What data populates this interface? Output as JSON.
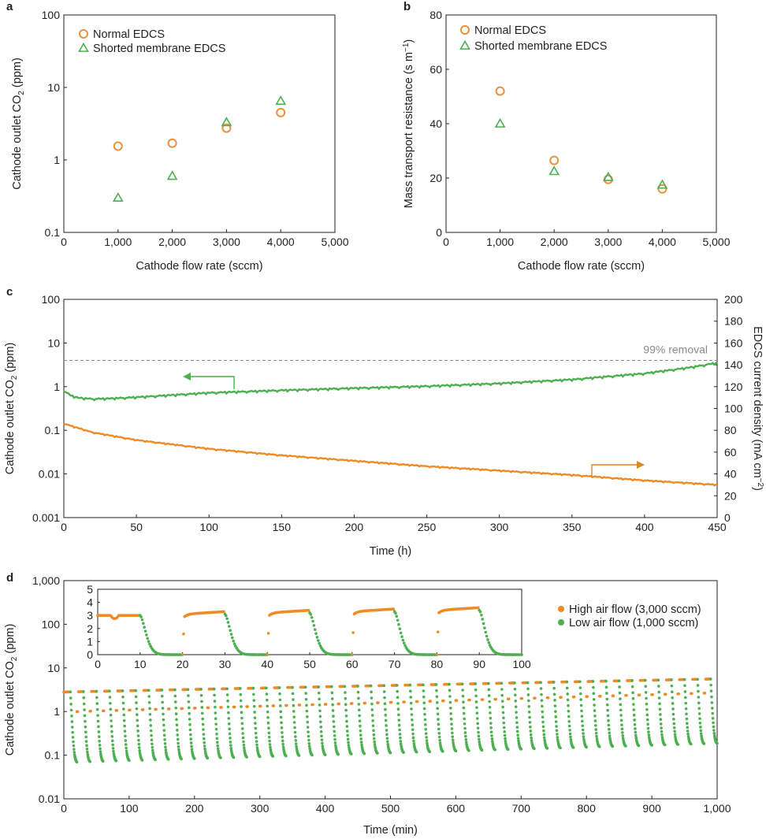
{
  "chart_data": [
    {
      "panel_label": "a",
      "type": "scatter",
      "xlabel": "Cathode flow rate (sccm)",
      "ylabel": "Cathode outlet CO2 (ppm)",
      "xlim": [
        0,
        5000
      ],
      "ylim": [
        0.1,
        100
      ],
      "y_scale": "log",
      "x_tick_labels": [
        "0",
        "1,000",
        "2,000",
        "3,000",
        "4,000",
        "5,000"
      ],
      "y_tick_labels": [
        "0.1",
        "1",
        "10",
        "100"
      ],
      "grid": false,
      "legend_position": "top-left",
      "series": [
        {
          "name": "Normal EDCS",
          "marker": "circle",
          "color": "#e8923a",
          "x": [
            1000,
            2000,
            3000,
            4000
          ],
          "y": [
            1.55,
            1.7,
            2.75,
            4.5
          ]
        },
        {
          "name": "Shorted membrane EDCS",
          "marker": "triangle",
          "color": "#4caf50",
          "x": [
            1000,
            2000,
            3000,
            4000
          ],
          "y": [
            0.3,
            0.6,
            3.3,
            6.5
          ]
        }
      ]
    },
    {
      "panel_label": "b",
      "type": "scatter",
      "xlabel": "Cathode flow rate (sccm)",
      "ylabel": "Mass transport resistance (s m−1)",
      "xlim": [
        0,
        5000
      ],
      "ylim": [
        0,
        80
      ],
      "x_tick_labels": [
        "0",
        "1,000",
        "2,000",
        "3,000",
        "4,000",
        "5,000"
      ],
      "y_tick_labels": [
        "0",
        "20",
        "40",
        "60",
        "80"
      ],
      "grid": false,
      "legend_position": "top-left",
      "series": [
        {
          "name": "Normal EDCS",
          "marker": "circle",
          "color": "#e8923a",
          "x": [
            1000,
            2000,
            3000,
            4000
          ],
          "y": [
            52,
            26.5,
            19.5,
            16
          ]
        },
        {
          "name": "Shorted membrane EDCS",
          "marker": "triangle",
          "color": "#4caf50",
          "x": [
            1000,
            2000,
            3000,
            4000
          ],
          "y": [
            40,
            22.5,
            20.3,
            17.5
          ]
        }
      ]
    },
    {
      "panel_label": "c",
      "type": "line",
      "xlabel": "Time (h)",
      "ylabel": "Cathode outlet CO2 (ppm)",
      "y2label": "EDCS current density (mA cm−2)",
      "xlim": [
        0,
        450
      ],
      "ylim": [
        0.001,
        100
      ],
      "y_scale": "log",
      "y2lim": [
        0,
        200
      ],
      "x_tick_labels": [
        "0",
        "50",
        "100",
        "150",
        "200",
        "250",
        "300",
        "350",
        "400",
        "450"
      ],
      "y_tick_labels": [
        "0.001",
        "0.01",
        "0.1",
        "1",
        "10",
        "100"
      ],
      "y2_tick_labels": [
        "0",
        "20",
        "40",
        "60",
        "80",
        "100",
        "120",
        "140",
        "160",
        "180",
        "200"
      ],
      "annotation": "99% removal",
      "reference_line_y": 4,
      "series": [
        {
          "name": "Cathode outlet CO2",
          "axis": "left",
          "color": "#4caf50",
          "x": [
            0,
            5,
            10,
            20,
            30,
            50,
            75,
            100,
            150,
            200,
            250,
            300,
            350,
            400,
            430,
            450
          ],
          "y": [
            0.8,
            0.62,
            0.55,
            0.52,
            0.53,
            0.57,
            0.64,
            0.72,
            0.82,
            0.92,
            1.02,
            1.18,
            1.45,
            2.0,
            2.7,
            3.5
          ]
        },
        {
          "name": "EDCS current density",
          "axis": "right",
          "color": "#f08a24",
          "x": [
            0,
            20,
            50,
            100,
            150,
            200,
            250,
            300,
            350,
            400,
            450
          ],
          "y": [
            86,
            78,
            71,
            63,
            57,
            52,
            47,
            43,
            39,
            34,
            30
          ]
        }
      ]
    },
    {
      "panel_label": "d",
      "type": "scatter",
      "xlabel": "Time (min)",
      "ylabel": "Cathode outlet CO2 (ppm)",
      "xlim": [
        0,
        1000
      ],
      "ylim": [
        0.01,
        1000
      ],
      "y_scale": "log",
      "x_tick_labels": [
        "0",
        "100",
        "200",
        "300",
        "400",
        "500",
        "600",
        "700",
        "800",
        "900",
        "1,000"
      ],
      "y_tick_labels": [
        "0.01",
        "0.1",
        "1",
        "10",
        "100",
        "1,000"
      ],
      "legend_position": "top-right",
      "cycle_period_min": 20,
      "high_flow_minutes_per_cycle": 10,
      "high_level_start": 2.8,
      "high_level_end": 5.6,
      "low_level_start": 0.065,
      "low_level_end": 0.18,
      "series": [
        {
          "name": "High air flow (3,000 sccm)",
          "color": "#f08a24"
        },
        {
          "name": "Low air flow (1,000 sccm)",
          "color": "#4caf50"
        }
      ],
      "inset": {
        "xlim": [
          0,
          100
        ],
        "ylim": [
          0,
          5
        ],
        "x_tick_labels": [
          "0",
          "10",
          "20",
          "30",
          "40",
          "50",
          "60",
          "70",
          "80",
          "90",
          "100"
        ],
        "y_tick_labels": [
          "0",
          "1",
          "2",
          "3",
          "4",
          "5"
        ],
        "high_levels": [
          3.0,
          3.1,
          3.2,
          3.3,
          3.4
        ]
      }
    }
  ]
}
